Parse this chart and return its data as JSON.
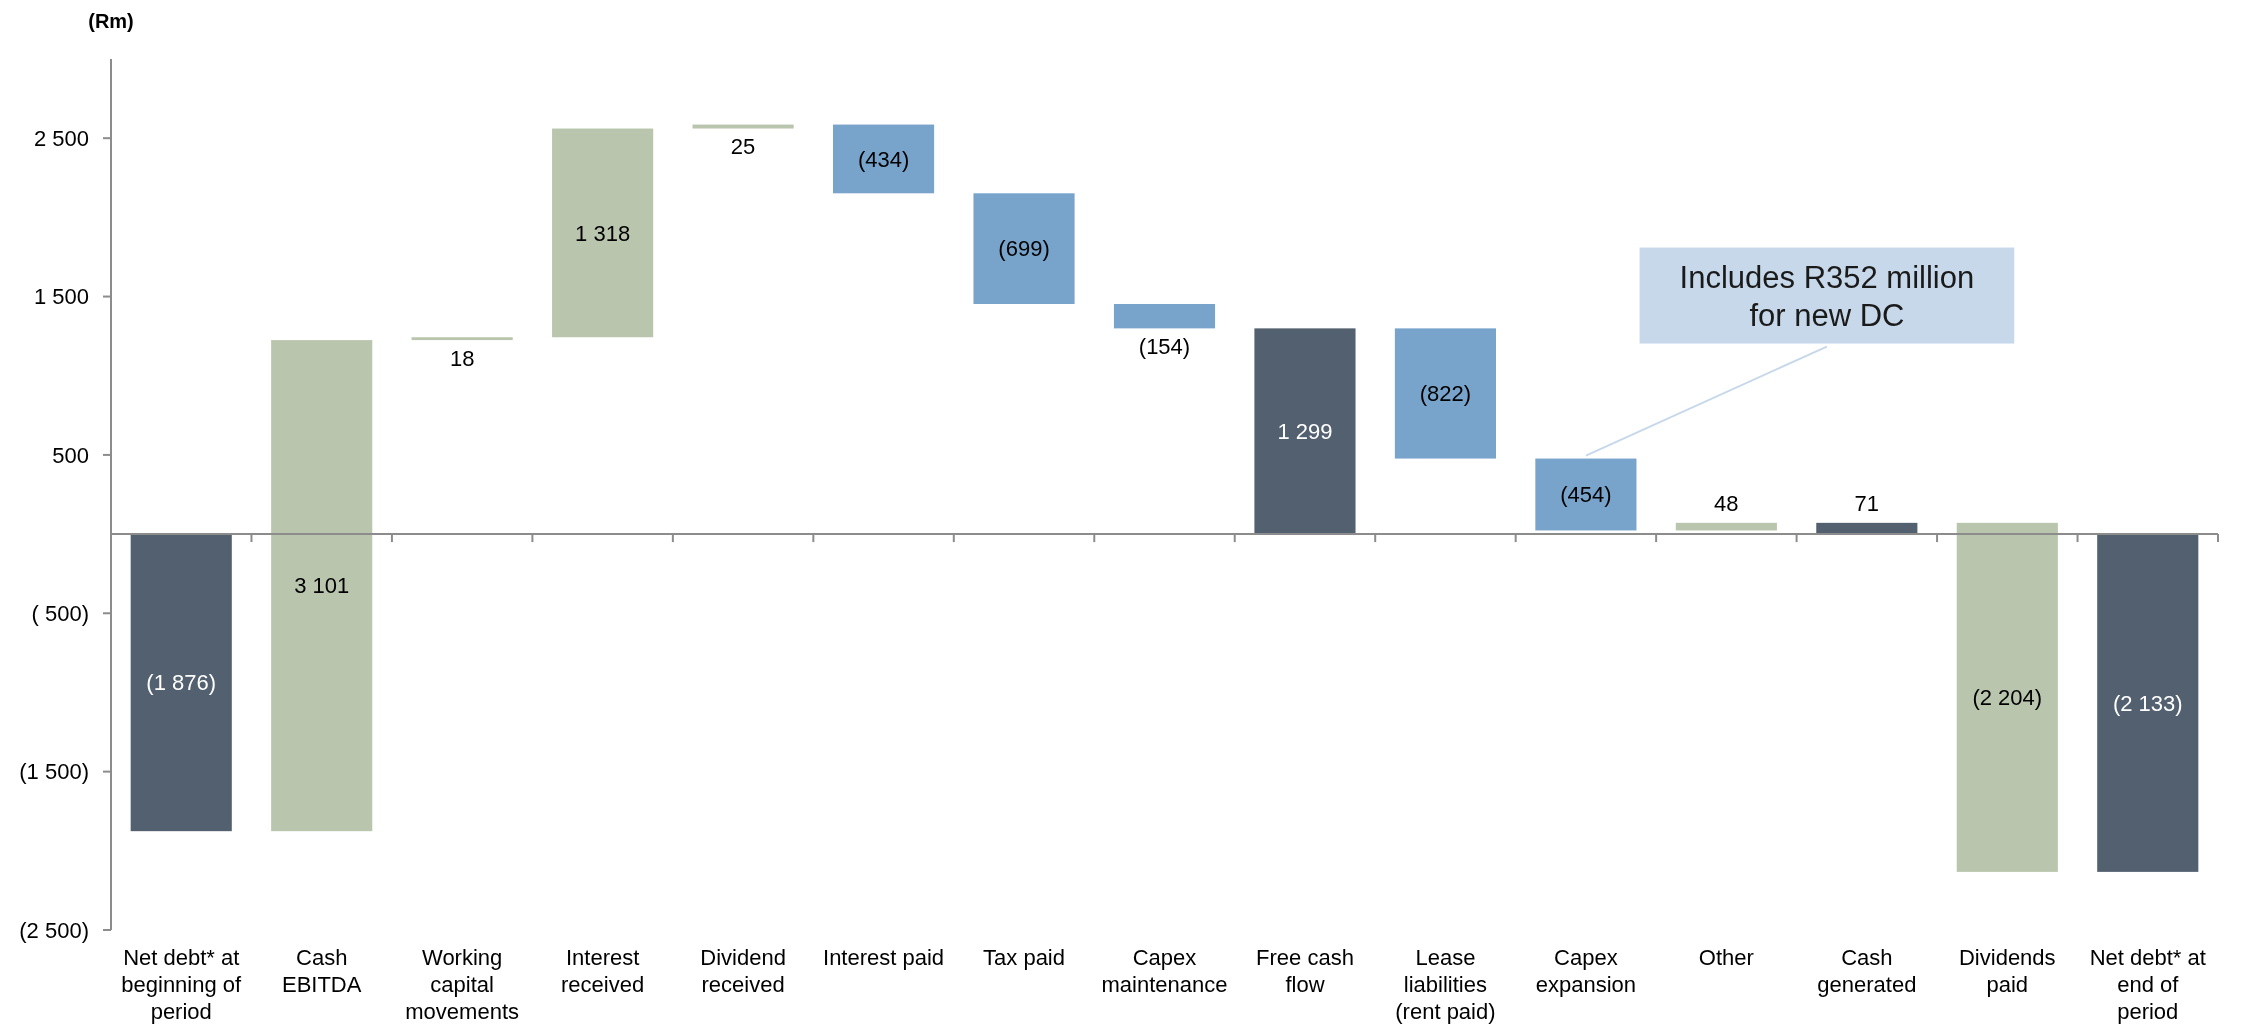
{
  "chart_data": {
    "type": "bar",
    "ylabel": "(Rm)",
    "categories": [
      "Net debt* at beginning of period",
      "Cash EBITDA",
      "Working capital movements",
      "Interest received",
      "Dividend received",
      "Interest paid",
      "Tax paid",
      "Capex maintenance",
      "Free cash flow",
      "Lease liabilities (rent paid)",
      "Capex expansion",
      "Other",
      "Cash generated",
      "Dividends paid",
      "Net debt* at end of period"
    ],
    "values": [
      -1876,
      3101,
      18,
      1318,
      25,
      -434,
      -699,
      -154,
      1299,
      -822,
      -454,
      48,
      71,
      -2204,
      -2133
    ],
    "base": [
      0,
      -1876,
      1225,
      1243,
      2561,
      2586,
      2152,
      1453,
      0,
      1299,
      477,
      23,
      0,
      71,
      0
    ],
    "colors": [
      "#52606f",
      "#b9c6ad",
      "#b9c6ad",
      "#b9c6ad",
      "#b9c6ad",
      "#78a4cc",
      "#78a4cc",
      "#78a4cc",
      "#52606f",
      "#78a4cc",
      "#78a4cc",
      "#b9c6ad",
      "#52606f",
      "#b9c6ad",
      "#52606f"
    ],
    "value_labels": [
      "(1 876)",
      "3 101",
      "18",
      "1 318",
      "25",
      "(434)",
      "(699)",
      "(154)",
      "1 299",
      "(822)",
      "(454)",
      "48",
      "71",
      "(2 204)",
      "(2 133)"
    ],
    "ylim": [
      -2500,
      3000
    ],
    "yticks": [
      {
        "value": 2500,
        "label": "2 500"
      },
      {
        "value": 1500,
        "label": "1 500"
      },
      500,
      {
        "value": -500,
        "label": "( 500)"
      },
      {
        "value": -1500,
        "label": "(1 500)"
      },
      {
        "value": -2500,
        "label": "(2 500)"
      }
    ],
    "annotations": [
      {
        "text": "Includes R352 million for new DC",
        "x": "Capex expansion",
        "y": 477
      }
    ]
  }
}
